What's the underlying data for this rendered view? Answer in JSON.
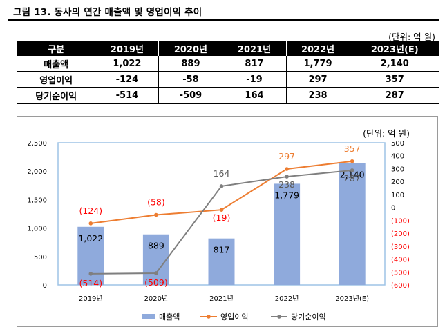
{
  "figure_title": "그림 13. 동사의 연간 매출액 및 영업이익 추이",
  "table": {
    "unit": "(단위: 억 원)",
    "headers": [
      "구분",
      "2019년",
      "2020년",
      "2021년",
      "2022년",
      "2023년(E)"
    ],
    "rows": [
      {
        "label": "매출액",
        "values": [
          "1,022",
          "889",
          "817",
          "1,779",
          "2,140"
        ]
      },
      {
        "label": "영업이익",
        "values": [
          "-124",
          "-58",
          "-19",
          "297",
          "357"
        ]
      },
      {
        "label": "당기순이익",
        "values": [
          "-514",
          "-509",
          "164",
          "238",
          "287"
        ]
      }
    ]
  },
  "chart_data": {
    "type": "bar",
    "unit": "(단위: 억 원)",
    "categories": [
      "2019년",
      "2020년",
      "2021년",
      "2022년",
      "2023년(E)"
    ],
    "series": [
      {
        "name": "매출액",
        "type": "bar",
        "axis": "left",
        "color": "#8faadc",
        "values": [
          1022,
          889,
          817,
          1779,
          2140
        ],
        "labels": [
          "1,022",
          "889",
          "817",
          "1,779",
          "2,140"
        ]
      },
      {
        "name": "영업이익",
        "type": "line",
        "axis": "right",
        "color": "#ed7d31",
        "values": [
          -124,
          -58,
          -19,
          297,
          357
        ],
        "labels": [
          "(124)",
          "(58)",
          "(19)",
          "297",
          "357"
        ]
      },
      {
        "name": "당기순이익",
        "type": "line",
        "axis": "right",
        "color": "#7f7f7f",
        "values": [
          -514,
          -509,
          164,
          238,
          287
        ],
        "labels": [
          "(514)",
          "(509)",
          "164",
          "238",
          "287"
        ]
      }
    ],
    "y_left": {
      "min": 0,
      "max": 2500,
      "ticks": [
        0,
        500,
        1000,
        1500,
        2000,
        2500
      ],
      "tick_labels": [
        "0",
        "500",
        "1,000",
        "1,500",
        "2,000",
        "2,500"
      ]
    },
    "y_right": {
      "min": -600,
      "max": 500,
      "ticks": [
        500,
        400,
        300,
        200,
        100,
        0,
        -100,
        -200,
        -300,
        -400,
        -500,
        -600
      ],
      "tick_labels": [
        "500",
        "400",
        "300",
        "200",
        "100",
        "0",
        "(100)",
        "(200)",
        "(300)",
        "(400)",
        "(500)",
        "(600)"
      ],
      "negative_color": "#ff0000"
    },
    "negative_label_color": "#ff0000",
    "grid": false,
    "legend_position": "bottom"
  }
}
